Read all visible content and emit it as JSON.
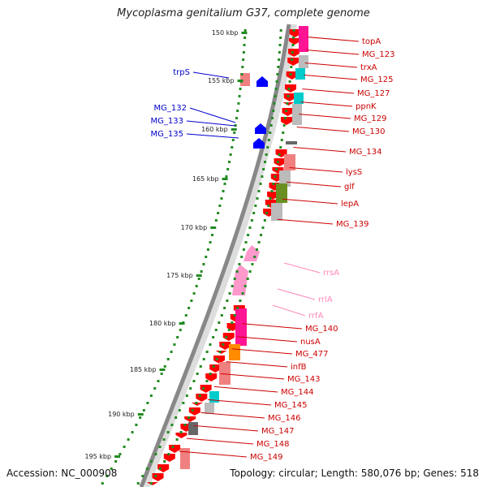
{
  "title": "Mycoplasma genitalium G37, complete genome",
  "footer": {
    "accession": "Accession: NC_000908",
    "topology": "Topology: circular; Length: 580,076 bp; Genes: 518"
  },
  "scale_labels": [
    "150 kbp",
    "155 kbp",
    "160 kbp",
    "165 kbp",
    "170 kbp",
    "175 kbp",
    "180 kbp",
    "185 kbp",
    "190 kbp",
    "195 kbp"
  ],
  "colors": {
    "cds_forward": "#ff0000",
    "cds_reverse": "#0000ff",
    "rna": "#ff99cc",
    "backbone": "#888888",
    "scale_ticks": "#228b22",
    "label_forward": "#cc0000",
    "label_reverse": "#0000cc",
    "label_rna": "#ff88bb",
    "cog_magenta": "#ff1493",
    "cog_orange": "#ff8c00",
    "cog_olive": "#6b8e23",
    "cog_cyan": "#00cccc",
    "cog_salmon": "#f08080",
    "cog_gray": "#bbbbbb",
    "cog_dark": "#666666"
  },
  "labels_reverse": [
    "trpS",
    "MG_132",
    "MG_133",
    "MG_135"
  ],
  "labels_rna": [
    "rrsA",
    "rrlA",
    "rrfA"
  ],
  "labels_forward": [
    "topA",
    "MG_123",
    "trxA",
    "MG_125",
    "MG_127",
    "ppnK",
    "MG_129",
    "MG_130",
    "MG_134",
    "lysS",
    "glf",
    "lepA",
    "MG_139",
    "MG_140",
    "nusA",
    "MG_477",
    "infB",
    "MG_143",
    "MG_144",
    "MG_145",
    "MG_146",
    "MG_147",
    "MG_148",
    "MG_149"
  ]
}
